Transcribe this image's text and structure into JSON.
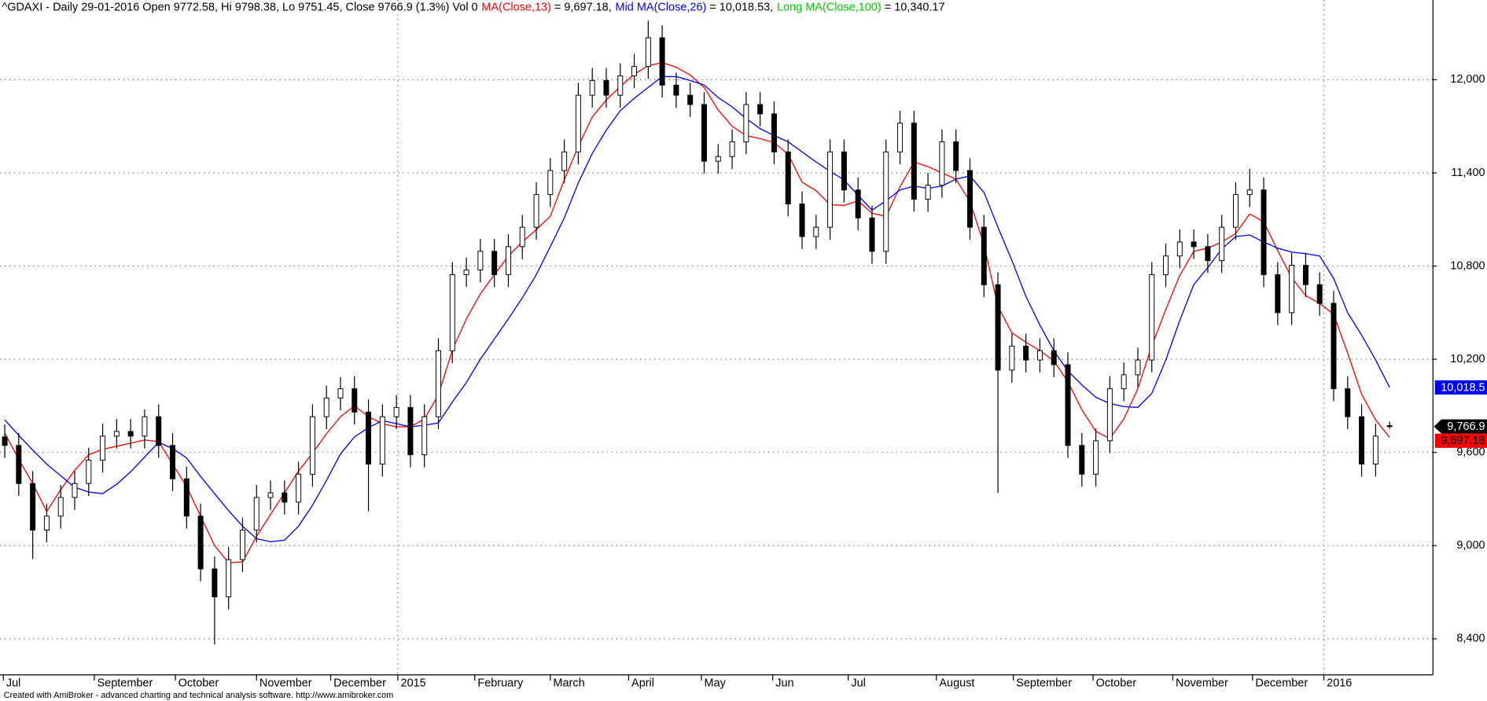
{
  "chart_data": {
    "type": "candlestick",
    "title": "^GDAXI - Daily 29-01-2016 Open 9772.58, Hi 9798.38, Lo 9751.45, Close 9766.9 (1.3%) Vol 0",
    "indicators": [
      {
        "name": "MA(Close,13)",
        "color": "#ff0000",
        "readout": " = 9,697.18,"
      },
      {
        "name": "Mid MA(Close,26)",
        "color": "#0000ff",
        "readout": " = 10,018.53,"
      },
      {
        "name": "Long MA(Close,100)",
        "color": "#00cc00",
        "readout": " = 10,340.17"
      }
    ],
    "footer": "Created with AmiBroker - advanced charting and technical analysis software. http://www.amibroker.com",
    "xlim": [
      -0.34,
      102.03
    ],
    "xticks": [
      {
        "value": -0.1,
        "label": "Jul"
      },
      {
        "value": 6.4,
        "label": "September"
      },
      {
        "value": 12.2,
        "label": "October"
      },
      {
        "value": 18,
        "label": "November"
      },
      {
        "value": 23.3,
        "label": "December"
      },
      2015,
      {
        "value": 33.6,
        "label": "February"
      },
      {
        "value": 39,
        "label": "March"
      },
      {
        "value": 44.6,
        "label": "April"
      },
      {
        "value": 49.8,
        "label": "May"
      },
      {
        "value": 54.9,
        "label": "Jun"
      },
      {
        "value": 60.3,
        "label": "Jul"
      },
      {
        "value": 66.6,
        "label": "August"
      },
      {
        "value": 72.1,
        "label": "September"
      },
      {
        "value": 77.8,
        "label": "October"
      },
      {
        "value": 83.5,
        "label": "November"
      },
      {
        "value": 89.2,
        "label": "December"
      },
      2016
    ],
    "year_tick_index": [
      28.1,
      94.3
    ],
    "ylim": [
      8168,
      12513
    ],
    "yticks": [
      {
        "value": 8400,
        "label": "8,400"
      },
      {
        "value": 9000,
        "label": "9,000"
      },
      {
        "value": 9600,
        "label": "9,600"
      },
      {
        "value": 10200,
        "label": "10,200"
      },
      {
        "value": 10800,
        "label": "10,800"
      },
      {
        "value": 11400,
        "label": "11,400"
      },
      {
        "value": 12000,
        "label": "12,000"
      }
    ],
    "grid": true,
    "up_color": "#ffffff",
    "down_color": "#000000",
    "ohlc": {
      "open": [
        9700,
        9645,
        9400,
        9100,
        9190,
        9310,
        9400,
        9550,
        9705,
        9735,
        9705,
        9830,
        9645,
        9430,
        9190,
        8850,
        8670,
        8910,
        9100,
        9310,
        9340,
        9280,
        9460,
        9830,
        9950,
        10010,
        9860,
        9525,
        9830,
        9890,
        9585,
        9830,
        10255,
        10745,
        10775,
        10895,
        10745,
        10925,
        11050,
        11260,
        11415,
        11535,
        11900,
        11995,
        11900,
        12025,
        12085,
        12270,
        11965,
        11900,
        11840,
        11475,
        11505,
        11600,
        11840,
        11780,
        11535,
        11200,
        10990,
        11050,
        11535,
        11290,
        11110,
        10895,
        11535,
        11720,
        11230,
        11320,
        11600,
        11415,
        11050,
        10680,
        10130,
        10285,
        10195,
        10255,
        10165,
        9645,
        9460,
        9675,
        10010,
        10100,
        10195,
        10745,
        10865,
        10955,
        10925,
        10835,
        11050,
        11260,
        11290,
        10745,
        10500,
        10805,
        10680,
        10560,
        10010,
        9830,
        9525,
        9772.58
      ],
      "high": [
        9780,
        9725,
        9480,
        9270,
        9390,
        9480,
        9630,
        9785,
        9815,
        9815,
        9877,
        9910,
        9725,
        9510,
        9270,
        8930,
        8990,
        9180,
        9390,
        9420,
        9420,
        9540,
        9910,
        10030,
        10085,
        10090,
        9940,
        9910,
        9970,
        9970,
        9910,
        10335,
        10825,
        10855,
        10975,
        10975,
        11005,
        11130,
        11340,
        11495,
        11615,
        11980,
        12075,
        12075,
        12105,
        12165,
        12380,
        12350,
        12045,
        11980,
        11920,
        11585,
        11680,
        11920,
        11920,
        11860,
        11615,
        11280,
        11130,
        11615,
        11615,
        11370,
        11190,
        11615,
        11800,
        11800,
        11400,
        11680,
        11680,
        11495,
        11130,
        10760,
        10365,
        10365,
        10335,
        10335,
        10245,
        9725,
        9755,
        10090,
        10180,
        10275,
        10825,
        10945,
        11035,
        11035,
        11005,
        11130,
        11340,
        11425,
        11370,
        10825,
        10885,
        10885,
        10760,
        10640,
        10090,
        9910,
        9785,
        9798.38
      ],
      "low": [
        9565,
        9320,
        8914,
        9020,
        9110,
        9230,
        9320,
        9470,
        9625,
        9625,
        9625,
        9565,
        9350,
        9110,
        8770,
        8364,
        8590,
        8830,
        9020,
        9230,
        9200,
        9200,
        9380,
        9750,
        9870,
        9780,
        9220,
        9445,
        9750,
        9505,
        9505,
        9750,
        10175,
        10665,
        10695,
        10665,
        10665,
        10845,
        10970,
        11180,
        11335,
        11455,
        11820,
        11820,
        11820,
        11945,
        12005,
        11885,
        11820,
        11760,
        11395,
        11395,
        11425,
        11520,
        11700,
        11455,
        11120,
        10910,
        10910,
        10970,
        11210,
        11030,
        10815,
        10815,
        11455,
        11150,
        11150,
        11240,
        11335,
        10970,
        10600,
        9340,
        10050,
        10115,
        10115,
        10085,
        9565,
        9380,
        9380,
        9595,
        9930,
        10020,
        10115,
        10665,
        10785,
        10845,
        10755,
        10755,
        10970,
        11180,
        10665,
        10420,
        10420,
        10600,
        10480,
        9930,
        9750,
        9445,
        9445,
        9751.45
      ],
      "close": [
        9645,
        9400,
        9100,
        9190,
        9310,
        9400,
        9550,
        9705,
        9735,
        9705,
        9830,
        9645,
        9430,
        9190,
        8850,
        8670,
        8910,
        9100,
        9310,
        9340,
        9280,
        9460,
        9830,
        9950,
        10010,
        9860,
        9525,
        9830,
        9890,
        9585,
        9830,
        10255,
        10745,
        10775,
        10895,
        10745,
        10925,
        11050,
        11260,
        11415,
        11535,
        11900,
        11995,
        11900,
        12025,
        12085,
        12270,
        11965,
        11900,
        11840,
        11475,
        11505,
        11600,
        11840,
        11780,
        11535,
        11200,
        10990,
        11050,
        11535,
        11290,
        11110,
        10895,
        11535,
        11720,
        11230,
        11320,
        11600,
        11415,
        11050,
        10680,
        10130,
        10285,
        10195,
        10255,
        10165,
        9645,
        9460,
        9675,
        10010,
        10100,
        10195,
        10745,
        10865,
        10955,
        10925,
        10835,
        11050,
        11260,
        11290,
        10745,
        10500,
        10805,
        10680,
        10560,
        10010,
        9830,
        9525,
        9705,
        9766.9
      ],
      "last_label": "9,766.9"
    },
    "series": [
      {
        "name": "MA(Close,13)",
        "color": "#ff0000",
        "last_label": "9,697.18",
        "values": [
          9725,
          9555,
          9400,
          9220,
          9360,
          9485,
          9585,
          9620,
          9640,
          9660,
          9680,
          9670,
          9525,
          9380,
          9190,
          9000,
          8890,
          8895,
          9060,
          9200,
          9340,
          9480,
          9595,
          9720,
          9830,
          9900,
          9830,
          9785,
          9765,
          9765,
          9815,
          9970,
          10260,
          10460,
          10620,
          10745,
          10865,
          10955,
          11035,
          11120,
          11355,
          11570,
          11760,
          11870,
          11955,
          12035,
          12090,
          12110,
          12080,
          12030,
          11950,
          11805,
          11700,
          11640,
          11620,
          11595,
          11520,
          11340,
          11285,
          11195,
          11190,
          11220,
          11140,
          11120,
          11310,
          11470,
          11440,
          11400,
          11360,
          11215,
          10940,
          10540,
          10370,
          10310,
          10255,
          10190,
          10055,
          9875,
          9735,
          9690,
          9815,
          10010,
          10285,
          10520,
          10740,
          10895,
          10915,
          10955,
          11010,
          11135,
          11085,
          10900,
          10725,
          10610,
          10560,
          10490,
          10240,
          9975,
          9810,
          9697.18
        ]
      },
      {
        "name": "Mid MA(Close,26)",
        "color": "#0000ff",
        "last_label": "10,018.5",
        "values": [
          9810,
          9710,
          9615,
          9525,
          9450,
          9375,
          9345,
          9335,
          9395,
          9475,
          9570,
          9665,
          9625,
          9565,
          9445,
          9335,
          9225,
          9125,
          9045,
          9025,
          9035,
          9125,
          9260,
          9420,
          9590,
          9700,
          9760,
          9805,
          9785,
          9765,
          9775,
          9790,
          9925,
          10050,
          10200,
          10330,
          10460,
          10595,
          10745,
          10925,
          11110,
          11335,
          11525,
          11675,
          11800,
          11880,
          11950,
          12020,
          12020,
          11995,
          11965,
          11885,
          11825,
          11750,
          11685,
          11640,
          11600,
          11535,
          11470,
          11410,
          11355,
          11255,
          11160,
          11220,
          11290,
          11315,
          11300,
          11315,
          11360,
          11380,
          11275,
          11050,
          10835,
          10605,
          10420,
          10255,
          10125,
          10035,
          9955,
          9915,
          9895,
          9890,
          9980,
          10195,
          10450,
          10680,
          10790,
          10910,
          10990,
          11000,
          10955,
          10915,
          10890,
          10880,
          10865,
          10720,
          10500,
          10355,
          10195,
          10018.53
        ]
      }
    ]
  }
}
